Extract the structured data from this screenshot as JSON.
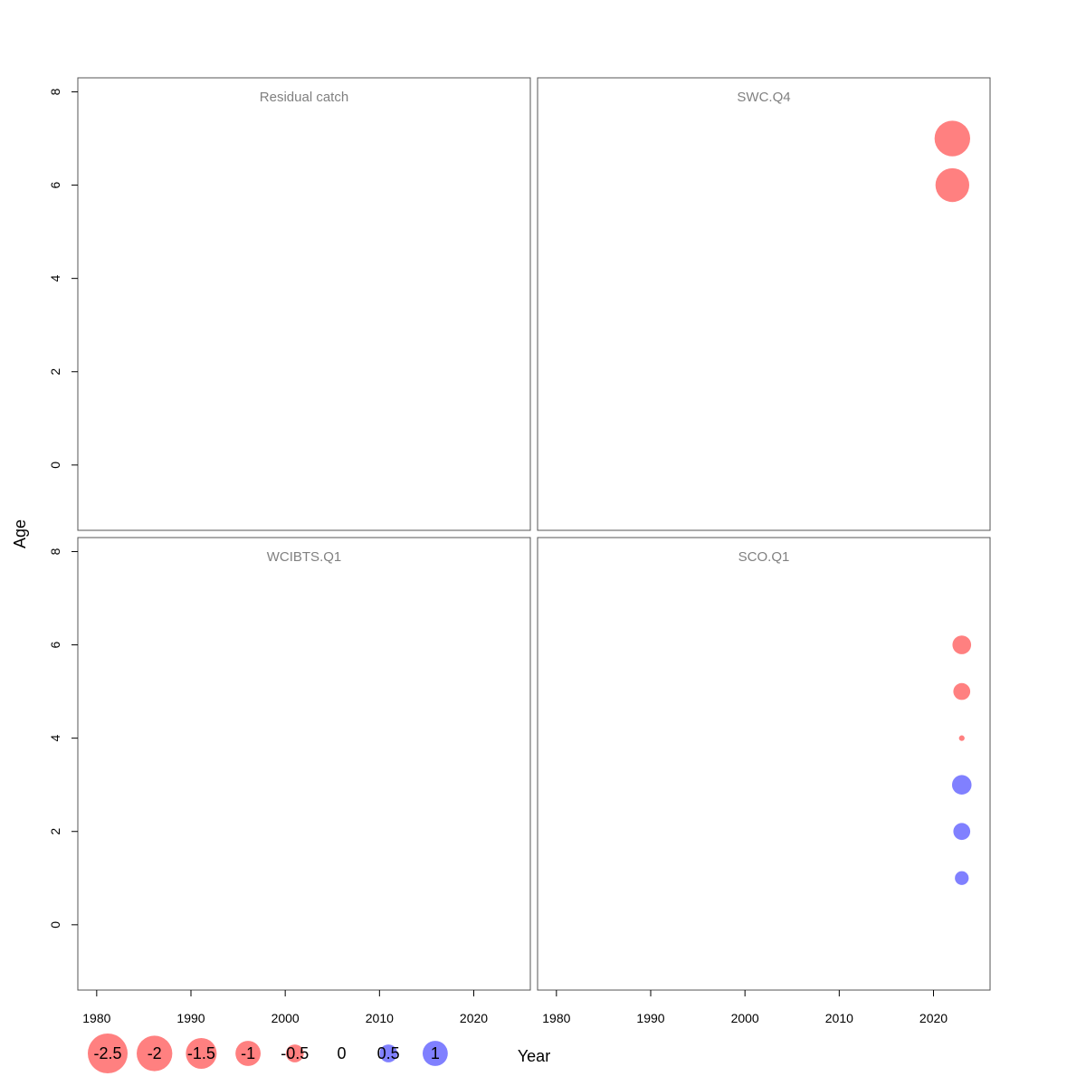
{
  "chart_data": {
    "type": "scatter",
    "xlabel": "Year",
    "ylabel": "Age",
    "xlim": [
      1978,
      2026
    ],
    "ylim": [
      -1.4,
      8.3
    ],
    "x_ticks": [
      1980,
      1990,
      2000,
      2010,
      2020
    ],
    "y_ticks": [
      0,
      2,
      4,
      6,
      8
    ],
    "colors": {
      "negative": "#ff8080",
      "positive": "#8080ff"
    },
    "panels": [
      {
        "title": "Residual catch",
        "points": []
      },
      {
        "title": "SWC.Q4",
        "points": [
          {
            "x": 2022,
            "y": 7,
            "value": -2.0
          },
          {
            "x": 2022,
            "y": 6,
            "value": -1.8
          }
        ]
      },
      {
        "title": "WCIBTS.Q1",
        "points": []
      },
      {
        "title": "SCO.Q1",
        "points": [
          {
            "x": 2023,
            "y": 6,
            "value": -0.55
          },
          {
            "x": 2023,
            "y": 5,
            "value": -0.45
          },
          {
            "x": 2023,
            "y": 4,
            "value": -0.05
          },
          {
            "x": 2023,
            "y": 3,
            "value": 0.6
          },
          {
            "x": 2023,
            "y": 2,
            "value": 0.45
          },
          {
            "x": 2023,
            "y": 1,
            "value": 0.3
          }
        ]
      }
    ],
    "legend": {
      "items": [
        {
          "label": "-2.5",
          "value": -2.5
        },
        {
          "label": "-2",
          "value": -2
        },
        {
          "label": "-1.5",
          "value": -1.5
        },
        {
          "label": "-1",
          "value": -1
        },
        {
          "label": "-0.5",
          "value": -0.5
        },
        {
          "label": "0",
          "value": 0
        },
        {
          "label": "0.5",
          "value": 0.5
        },
        {
          "label": "1",
          "value": 1
        }
      ]
    }
  }
}
